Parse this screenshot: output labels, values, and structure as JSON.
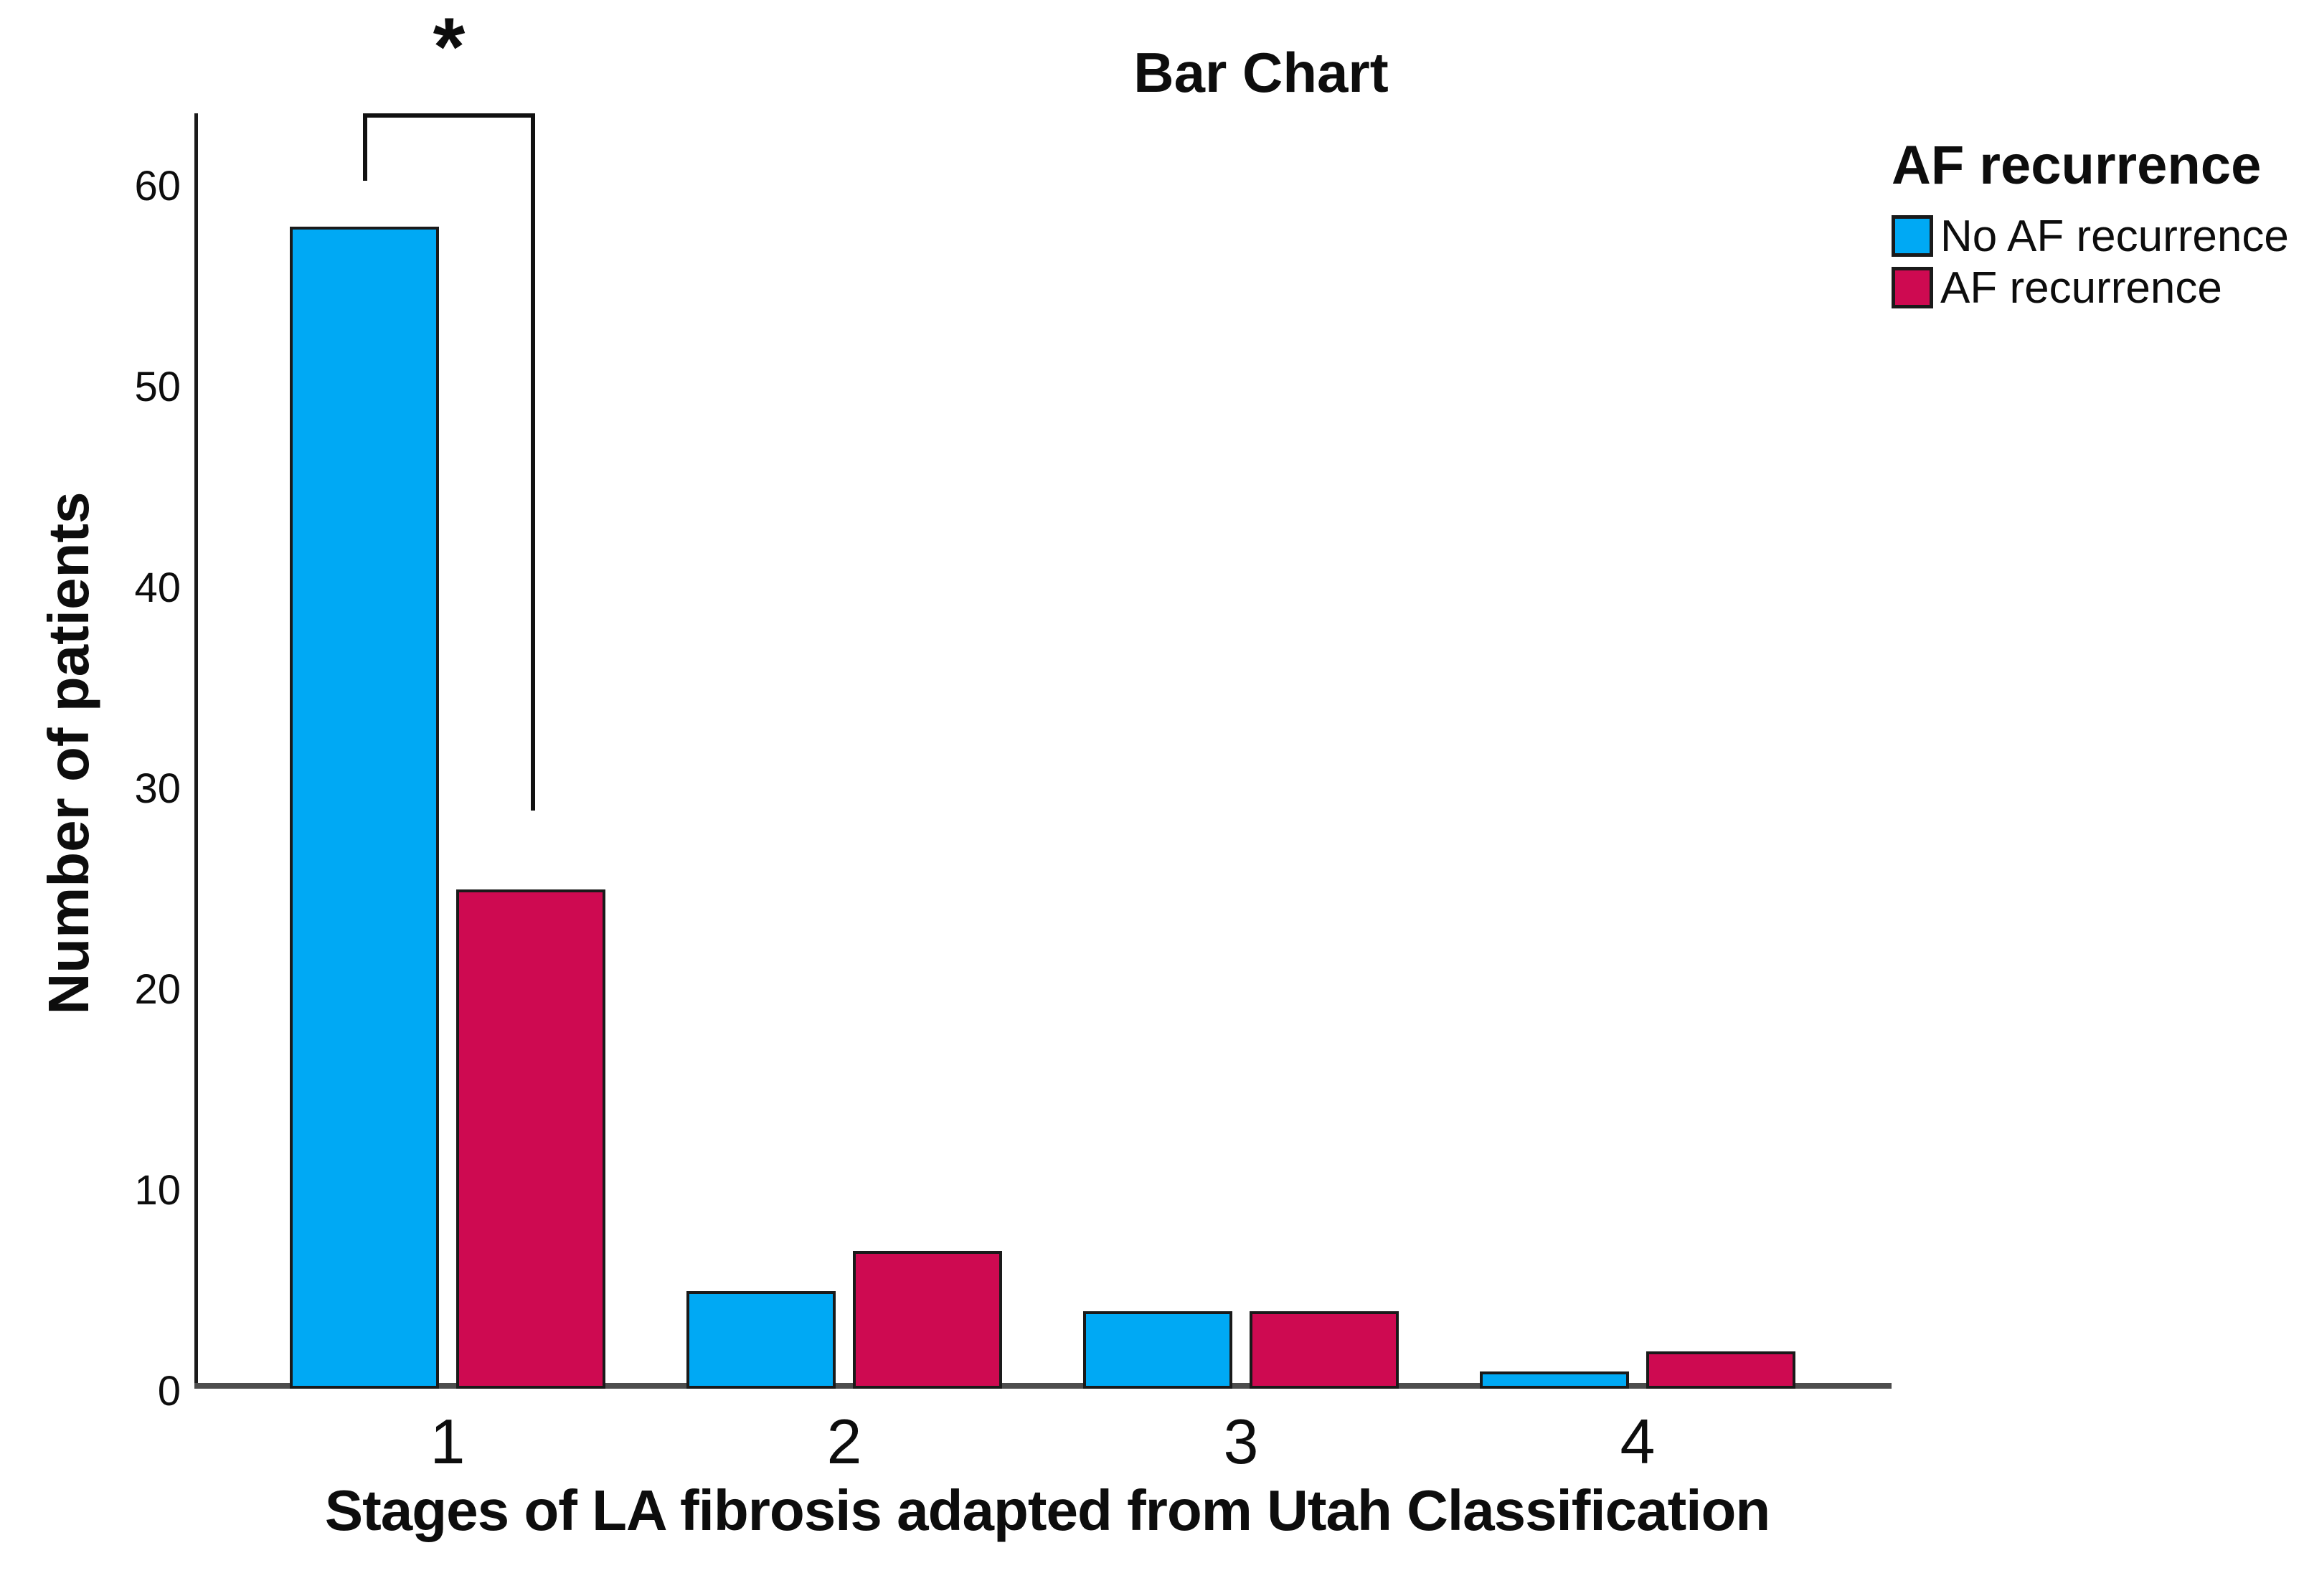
{
  "figure": {
    "background": "#ffffff"
  },
  "chart_data": {
    "type": "bar",
    "title": "Bar Chart",
    "xlabel": "Stages of LA fibrosis adapted from Utah Classification",
    "ylabel": "Number of patients",
    "categories": [
      "1",
      "2",
      "3",
      "4"
    ],
    "series": [
      {
        "name": "No AF recurrence",
        "color": "#00A9F4",
        "values": [
          58,
          5,
          4,
          1
        ]
      },
      {
        "name": "AF recurrence",
        "color": "#CE0A51",
        "values": [
          25,
          7,
          4,
          2
        ]
      }
    ],
    "ylim": [
      0,
      60
    ],
    "yticks": [
      0,
      10,
      20,
      30,
      40,
      50,
      60
    ],
    "grid": false,
    "legend_position": "top-right",
    "annotation": {
      "symbol": "*",
      "compares": {
        "category": "1",
        "between": [
          "No AF recurrence",
          "AF recurrence"
        ]
      }
    }
  },
  "legend": {
    "title": "AF recurrence",
    "items": [
      {
        "label": "No AF recurrence",
        "color": "#00A9F4"
      },
      {
        "label": "AF recurrence",
        "color": "#CE0A51"
      }
    ]
  },
  "colors": {
    "axis_x": "#4d4d4d",
    "axis_y": "#1a1a1a",
    "bar_border": "#1a1a1a",
    "bracket": "#111111",
    "text": "#0d0d0d"
  }
}
